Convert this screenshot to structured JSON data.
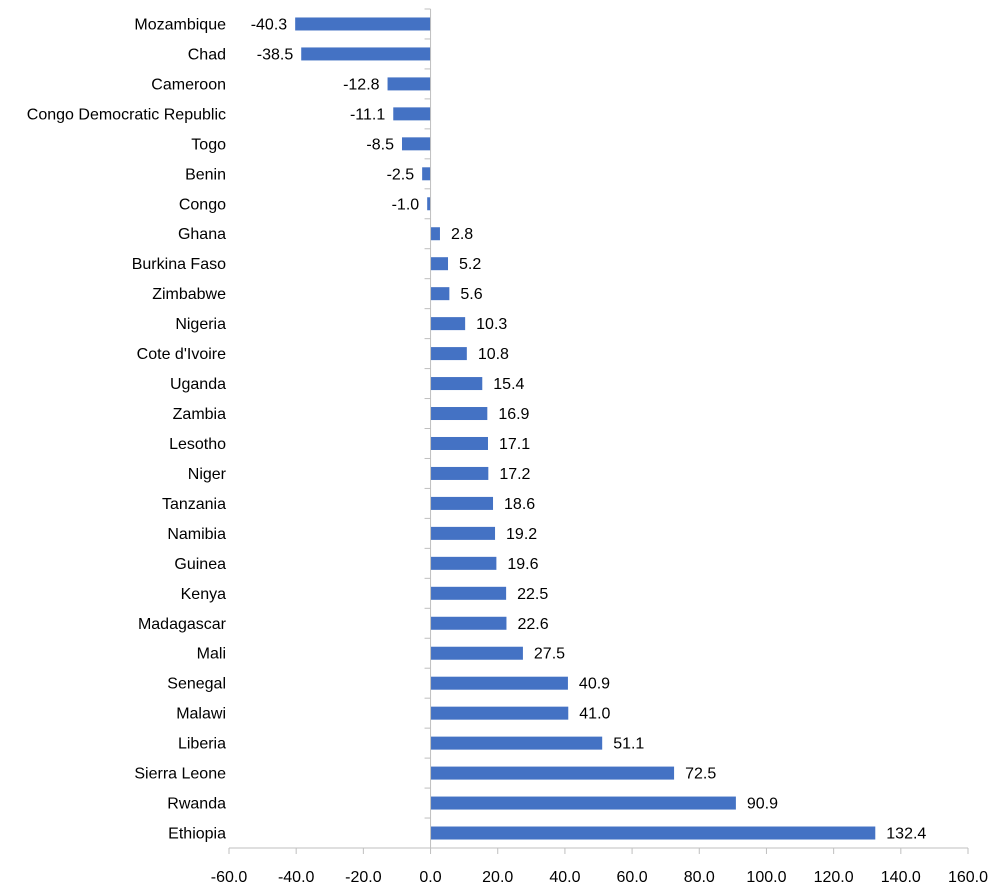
{
  "chart_data": {
    "type": "bar",
    "orientation": "horizontal",
    "title": "",
    "xlabel": "",
    "ylabel": "",
    "xlim": [
      -60,
      160
    ],
    "xticks": [
      -60,
      -40,
      -20,
      0,
      20,
      40,
      60,
      80,
      100,
      120,
      140,
      160
    ],
    "xtick_labels": [
      "-60.0",
      "-40.0",
      "-20.0",
      "0.0",
      "20.0",
      "40.0",
      "60.0",
      "80.0",
      "100.0",
      "120.0",
      "140.0",
      "160.0"
    ],
    "grid": false,
    "legend": "none",
    "bar_color": "#4472C4",
    "categories": [
      "Mozambique",
      "Chad",
      "Cameroon",
      "Congo Democratic Republic",
      "Togo",
      "Benin",
      "Congo",
      "Ghana",
      "Burkina Faso",
      "Zimbabwe",
      "Nigeria",
      "Cote d'Ivoire",
      "Uganda",
      "Zambia",
      "Lesotho",
      "Niger",
      "Tanzania",
      "Namibia",
      "Guinea",
      "Kenya",
      "Madagascar",
      "Mali",
      "Senegal",
      "Malawi",
      "Liberia",
      "Sierra Leone",
      "Rwanda",
      "Ethiopia"
    ],
    "values": [
      -40.3,
      -38.5,
      -12.8,
      -11.1,
      -8.5,
      -2.5,
      -1.0,
      2.8,
      5.2,
      5.6,
      10.3,
      10.8,
      15.4,
      16.9,
      17.1,
      17.2,
      18.6,
      19.2,
      19.6,
      22.5,
      22.6,
      27.5,
      40.9,
      41.0,
      51.1,
      72.5,
      90.9,
      132.4
    ],
    "data_labels": [
      "-40.3",
      "-38.5",
      "-12.8",
      "-11.1",
      "-8.5",
      "-2.5",
      "-1.0",
      "2.8",
      "5.2",
      "5.6",
      "10.3",
      "10.8",
      "15.4",
      "16.9",
      "17.1",
      "17.2",
      "18.6",
      "19.2",
      "19.6",
      "22.5",
      "22.6",
      "27.5",
      "40.9",
      "41.0",
      "51.1",
      "72.5",
      "90.9",
      "132.4"
    ]
  }
}
